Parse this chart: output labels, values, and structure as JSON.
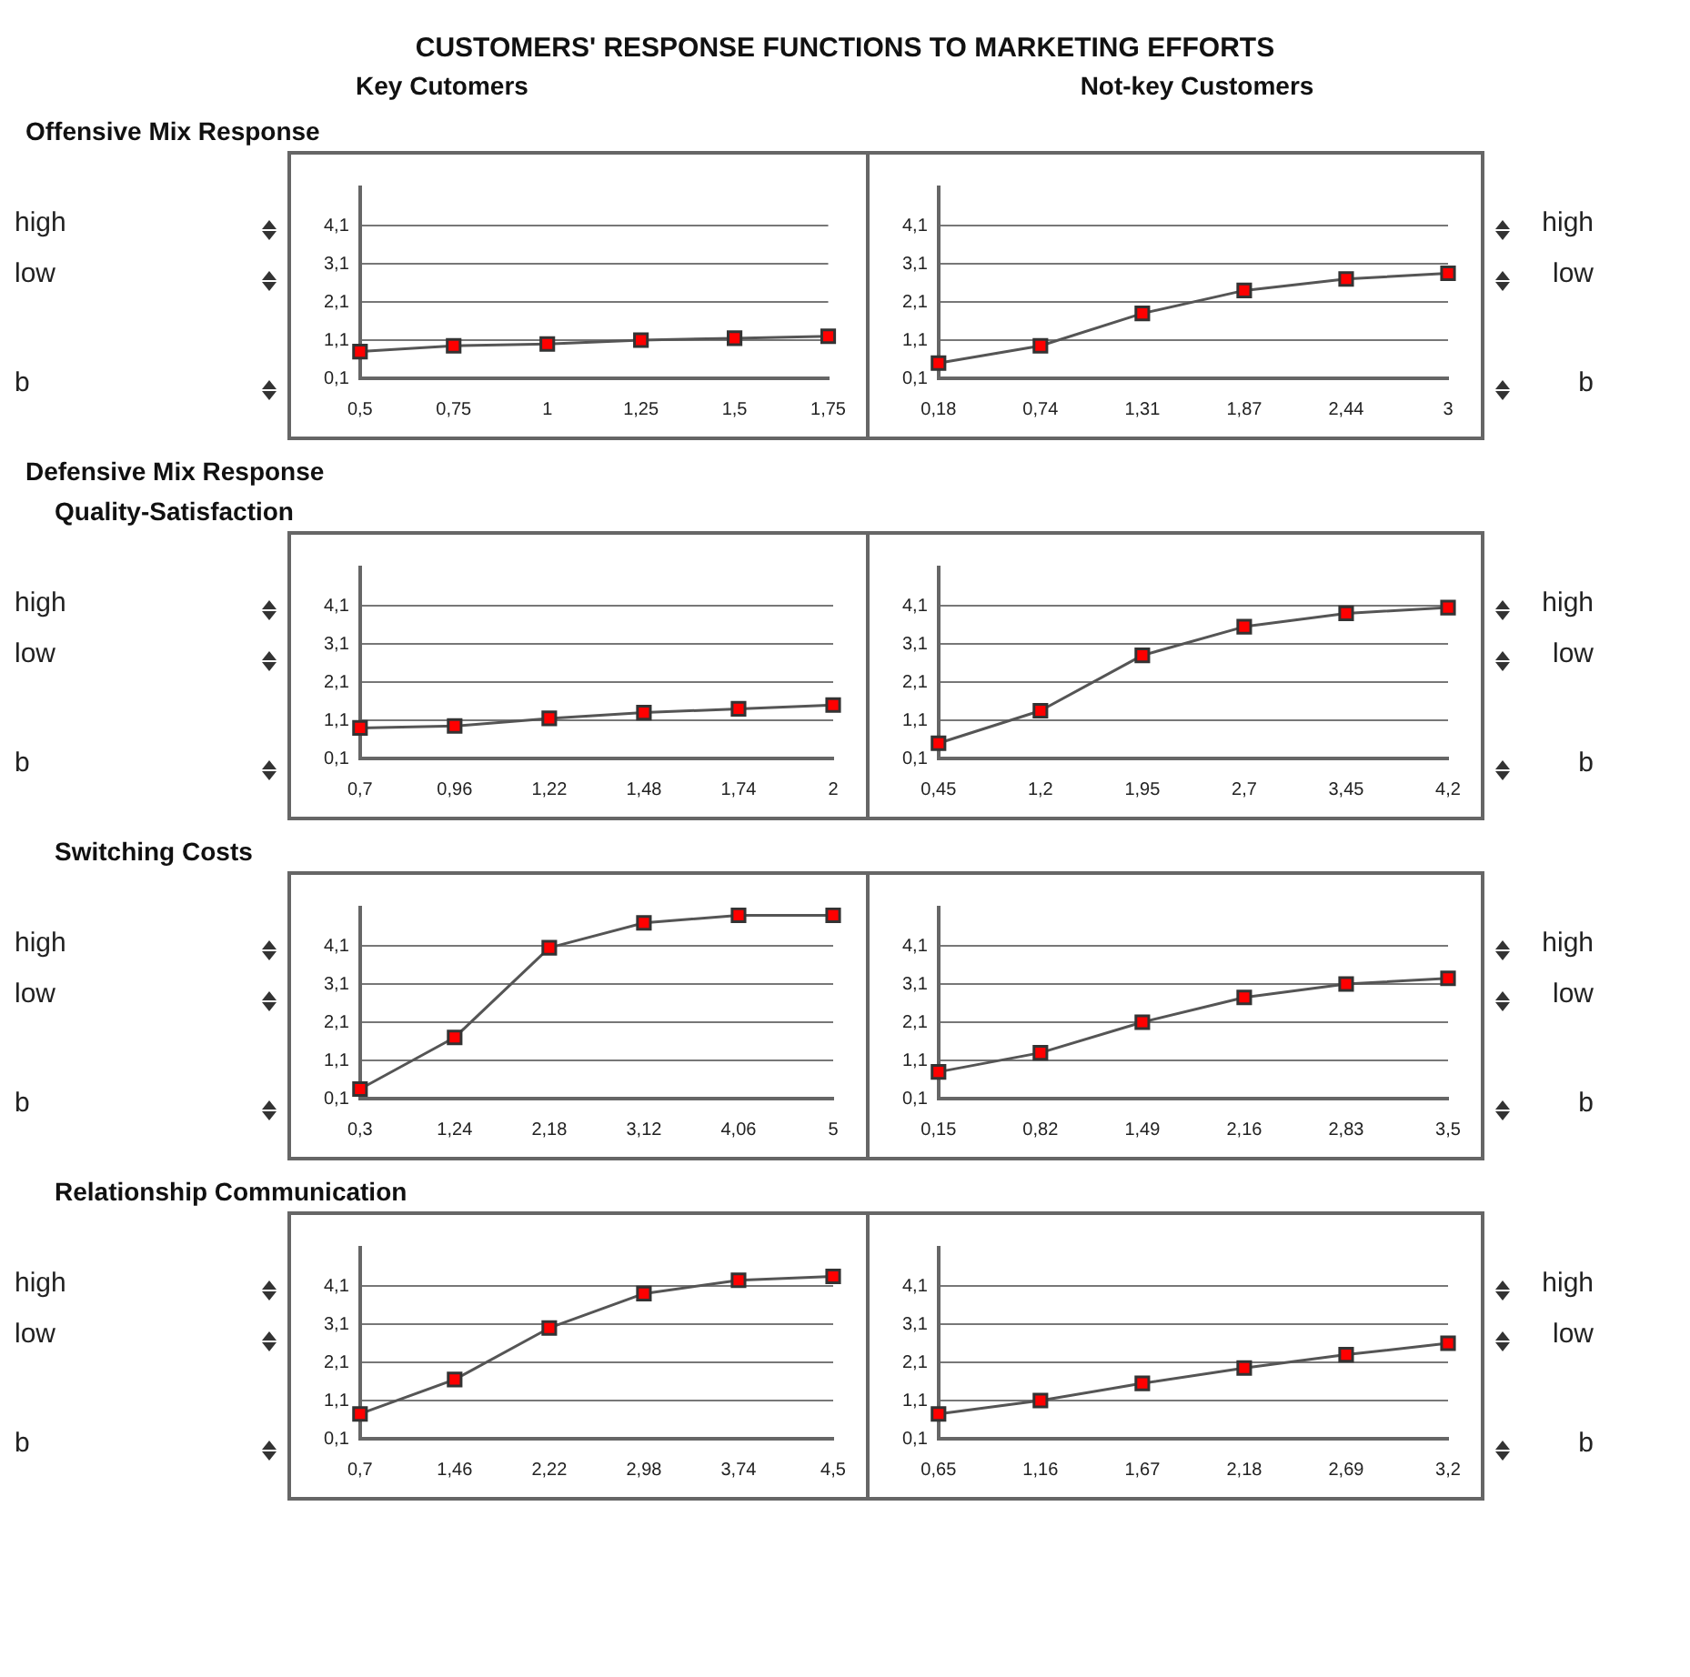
{
  "chart_data": [
    {
      "type": "line",
      "title": "CUSTOMERS' RESPONSE FUNCTIONS TO MARKETING EFFORTS",
      "subtitle": "Key Cutomers",
      "annotations": [
        "Offensive Mix Response",
        "high",
        "low",
        "b"
      ],
      "categories": [
        "0,5",
        "0,75",
        "1",
        "1,25",
        "1,5",
        "1,75"
      ],
      "series": [
        {
          "color": "#ff0000",
          "values": [
            0.8,
            0.95,
            1.0,
            1.1,
            1.15,
            1.2
          ]
        }
      ],
      "ylim": [
        0.1,
        5.1
      ],
      "yticks": [
        {
          "value": 0.1,
          "label": "0,1"
        },
        {
          "value": 1.1,
          "label": "1,1"
        },
        {
          "value": 2.1,
          "label": "2,1"
        },
        {
          "value": 3.1,
          "label": "3,1"
        },
        {
          "value": 4.1,
          "label": "4,1"
        }
      ],
      "grid": "y",
      "marker": "square"
    },
    {
      "type": "line",
      "subtitle": "Not-key Customers",
      "annotations": [
        "high",
        "low",
        "b"
      ],
      "categories": [
        "0,18",
        "0,74",
        "1,31",
        "1,87",
        "2,44",
        "3"
      ],
      "series": [
        {
          "color": "#ff0000",
          "values": [
            0.5,
            0.95,
            1.8,
            2.4,
            2.7,
            2.85
          ]
        }
      ],
      "ylim": [
        0.1,
        5.1
      ],
      "yticks": [
        {
          "value": 0.1,
          "label": "0,1"
        },
        {
          "value": 1.1,
          "label": "1,1"
        },
        {
          "value": 2.1,
          "label": "2,1"
        },
        {
          "value": 3.1,
          "label": "3,1"
        },
        {
          "value": 4.1,
          "label": "4,1"
        }
      ],
      "grid": "y",
      "marker": "square"
    },
    {
      "type": "line",
      "annotations": [
        "Defensive Mix Response",
        "Quality-Satisfaction",
        "high",
        "low",
        "b"
      ],
      "categories": [
        "0,7",
        "0,96",
        "1,22",
        "1,48",
        "1,74",
        "2"
      ],
      "series": [
        {
          "color": "#ff0000",
          "values": [
            0.9,
            0.95,
            1.15,
            1.3,
            1.4,
            1.5
          ]
        }
      ],
      "ylim": [
        0.1,
        5.1
      ],
      "yticks": [
        {
          "value": 0.1,
          "label": "0,1"
        },
        {
          "value": 1.1,
          "label": "1,1"
        },
        {
          "value": 2.1,
          "label": "2,1"
        },
        {
          "value": 3.1,
          "label": "3,1"
        },
        {
          "value": 4.1,
          "label": "4,1"
        }
      ],
      "grid": "y",
      "marker": "square"
    },
    {
      "type": "line",
      "annotations": [
        "high",
        "low",
        "b"
      ],
      "categories": [
        "0,45",
        "1,2",
        "1,95",
        "2,7",
        "3,45",
        "4,2"
      ],
      "series": [
        {
          "color": "#ff0000",
          "values": [
            0.5,
            1.35,
            2.8,
            3.55,
            3.9,
            4.05
          ]
        }
      ],
      "ylim": [
        0.1,
        5.1
      ],
      "yticks": [
        {
          "value": 0.1,
          "label": "0,1"
        },
        {
          "value": 1.1,
          "label": "1,1"
        },
        {
          "value": 2.1,
          "label": "2,1"
        },
        {
          "value": 3.1,
          "label": "3,1"
        },
        {
          "value": 4.1,
          "label": "4,1"
        }
      ],
      "grid": "y",
      "marker": "square"
    },
    {
      "type": "line",
      "annotations": [
        "Switching Costs",
        "high",
        "low",
        "b"
      ],
      "categories": [
        "0,3",
        "1,24",
        "2,18",
        "3,12",
        "4,06",
        "5"
      ],
      "series": [
        {
          "color": "#ff0000",
          "values": [
            0.35,
            1.7,
            4.05,
            4.7,
            4.9,
            4.9
          ]
        }
      ],
      "ylim": [
        0.1,
        5.1
      ],
      "yticks": [
        {
          "value": 0.1,
          "label": "0,1"
        },
        {
          "value": 1.1,
          "label": "1,1"
        },
        {
          "value": 2.1,
          "label": "2,1"
        },
        {
          "value": 3.1,
          "label": "3,1"
        },
        {
          "value": 4.1,
          "label": "4,1"
        }
      ],
      "grid": "y",
      "marker": "square"
    },
    {
      "type": "line",
      "annotations": [
        "high",
        "low",
        "b"
      ],
      "categories": [
        "0,15",
        "0,82",
        "1,49",
        "2,16",
        "2,83",
        "3,5"
      ],
      "series": [
        {
          "color": "#ff0000",
          "values": [
            0.8,
            1.3,
            2.1,
            2.75,
            3.1,
            3.25
          ]
        }
      ],
      "ylim": [
        0.1,
        5.1
      ],
      "yticks": [
        {
          "value": 0.1,
          "label": "0,1"
        },
        {
          "value": 1.1,
          "label": "1,1"
        },
        {
          "value": 2.1,
          "label": "2,1"
        },
        {
          "value": 3.1,
          "label": "3,1"
        },
        {
          "value": 4.1,
          "label": "4,1"
        }
      ],
      "grid": "y",
      "marker": "square"
    },
    {
      "type": "line",
      "annotations": [
        "Relationship Communication",
        "high",
        "low",
        "b"
      ],
      "categories": [
        "0,7",
        "1,46",
        "2,22",
        "2,98",
        "3,74",
        "4,5"
      ],
      "series": [
        {
          "color": "#ff0000",
          "values": [
            0.75,
            1.65,
            3.0,
            3.9,
            4.25,
            4.35
          ]
        }
      ],
      "ylim": [
        0.1,
        5.1
      ],
      "yticks": [
        {
          "value": 0.1,
          "label": "0,1"
        },
        {
          "value": 1.1,
          "label": "1,1"
        },
        {
          "value": 2.1,
          "label": "2,1"
        },
        {
          "value": 3.1,
          "label": "3,1"
        },
        {
          "value": 4.1,
          "label": "4,1"
        }
      ],
      "grid": "y",
      "marker": "square"
    },
    {
      "type": "line",
      "annotations": [
        "high",
        "low",
        "b"
      ],
      "categories": [
        "0,65",
        "1,16",
        "1,67",
        "2,18",
        "2,69",
        "3,2"
      ],
      "series": [
        {
          "color": "#ff0000",
          "values": [
            0.75,
            1.1,
            1.55,
            1.95,
            2.3,
            2.6
          ]
        }
      ],
      "ylim": [
        0.1,
        5.1
      ],
      "yticks": [
        {
          "value": 0.1,
          "label": "0,1"
        },
        {
          "value": 1.1,
          "label": "1,1"
        },
        {
          "value": 2.1,
          "label": "2,1"
        },
        {
          "value": 3.1,
          "label": "3,1"
        },
        {
          "value": 4.1,
          "label": "4,1"
        }
      ],
      "grid": "y",
      "marker": "square"
    }
  ]
}
